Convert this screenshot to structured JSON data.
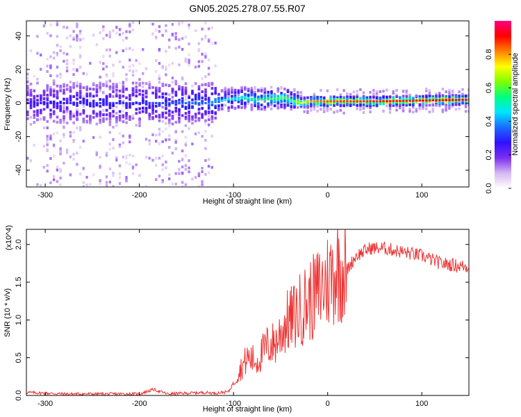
{
  "title": "GN05.2025.278.07.55.R07",
  "chart_data": [
    {
      "type": "heatmap",
      "title": "GN05.2025.278.07.55.R07",
      "xlabel": "Height of straight line (km)",
      "ylabel": "Frequency (Hz)",
      "xlim": [
        -320,
        150
      ],
      "ylim": [
        -50,
        49
      ],
      "xticks": [
        -300,
        -200,
        -100,
        0,
        100
      ],
      "xtick_labels": [
        "-300",
        "-200",
        "-100",
        "0",
        "100"
      ],
      "yticks": [
        -40,
        -20,
        0,
        20,
        40
      ],
      "ytick_labels": [
        "-40",
        "-20",
        "0",
        "20",
        "40"
      ],
      "colorbar": {
        "label": "Normalized spectral amplitude",
        "range": [
          0.0,
          1.0
        ],
        "ticks": [
          0.0,
          0.2,
          0.4,
          0.6,
          0.8
        ],
        "tick_labels": [
          "0.0",
          "0.2",
          "0.4",
          "0.6",
          "0.8"
        ],
        "colors": [
          "#ffffff",
          "#d6b8f2",
          "#7a2ff0",
          "#3010ff",
          "#1a6bff",
          "#00e5ff",
          "#00ff80",
          "#7fff00",
          "#ffff00",
          "#ff8000",
          "#ff0000",
          "#ff0080"
        ]
      },
      "trace": {
        "height_km": [
          -320,
          -250,
          -200,
          -150,
          -130,
          -110,
          -90,
          -70,
          -50,
          -40,
          -30,
          -20,
          0,
          50,
          100,
          150
        ],
        "center_freq_hz": [
          0,
          0,
          0,
          0,
          0,
          2,
          3,
          2,
          3,
          2,
          0,
          1,
          1,
          1,
          1.5,
          2
        ],
        "peak_amplitude": [
          0.25,
          0.3,
          0.3,
          0.35,
          0.35,
          0.45,
          0.5,
          0.55,
          0.6,
          0.55,
          0.7,
          0.8,
          0.85,
          0.88,
          0.9,
          0.92
        ]
      }
    },
    {
      "type": "line",
      "xlabel": "Height of straight line (km)",
      "ylabel": "SNR (10 * v/v)",
      "y_multiplier": "(x10^4)",
      "xlim": [
        -320,
        150
      ],
      "ylim": [
        0,
        2.2
      ],
      "xticks": [
        -300,
        -200,
        -100,
        0,
        100
      ],
      "xtick_labels": [
        "-300",
        "-200",
        "-100",
        "0",
        "100"
      ],
      "yticks": [
        0.0,
        0.5,
        1.0,
        1.5,
        2.0
      ],
      "ytick_labels": [
        "0.0",
        "0.5",
        "1.0",
        "1.5",
        "2.0"
      ],
      "line_color": "#ee3333",
      "series": [
        {
          "name": "SNR",
          "x": [
            -320,
            -300,
            -280,
            -250,
            -220,
            -200,
            -185,
            -170,
            -150,
            -130,
            -120,
            -105,
            -95,
            -85,
            -75,
            -65,
            -55,
            -45,
            -35,
            -25,
            -15,
            -5,
            5,
            10,
            20,
            30,
            45,
            60,
            80,
            100,
            120,
            150
          ],
          "y": [
            0.04,
            0.03,
            0.02,
            0.02,
            0.02,
            0.02,
            0.08,
            0.02,
            0.03,
            0.04,
            0.03,
            0.05,
            0.3,
            0.5,
            0.45,
            0.65,
            0.7,
            0.95,
            1.05,
            1.2,
            1.3,
            1.45,
            1.6,
            1.7,
            1.65,
            1.85,
            1.95,
            1.95,
            1.9,
            1.85,
            1.75,
            1.7
          ]
        }
      ]
    }
  ]
}
